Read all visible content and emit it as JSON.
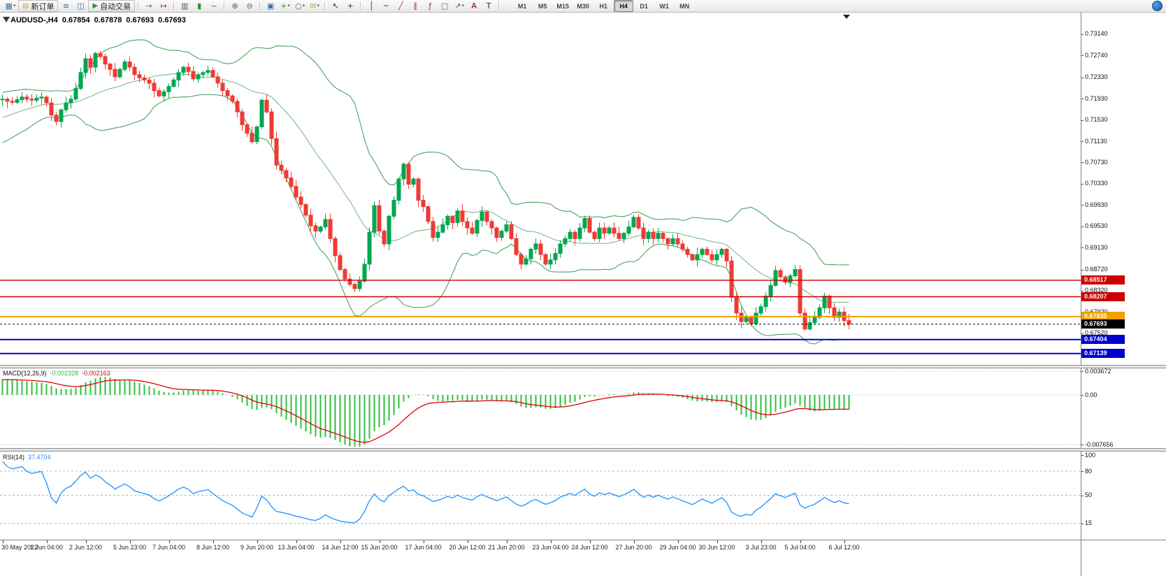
{
  "toolbar": {
    "dropdown_glyph": "▾",
    "active_timeframe": "H4",
    "timeframes": [
      "M1",
      "M5",
      "M15",
      "M30",
      "H1",
      "H4",
      "D1",
      "W1",
      "MN"
    ],
    "items": [
      {
        "kind": "icon",
        "name": "new-chart-icon",
        "glyph": "▦",
        "fg": "#3A6FB5",
        "dropdown": true
      },
      {
        "kind": "button",
        "name": "new-order-button",
        "glyph": "▤",
        "fg": "#D9A43B",
        "label": "新订单"
      },
      {
        "kind": "icon",
        "name": "market-watch-icon",
        "glyph": "≡",
        "fg": "#3A6FB5"
      },
      {
        "kind": "icon",
        "name": "navigator-icon",
        "glyph": "◫",
        "fg": "#3A6FB5"
      },
      {
        "kind": "button",
        "name": "autotrading-button",
        "glyph": "▶",
        "fg": "#1FA01F",
        "label": "自动交易"
      },
      {
        "kind": "sep"
      },
      {
        "kind": "icon",
        "name": "auto-scroll-icon",
        "glyph": "→",
        "fg": "#2F8F2F"
      },
      {
        "kind": "icon",
        "name": "chart-shift-icon",
        "glyph": "↦",
        "fg": "#B03030"
      },
      {
        "kind": "sep"
      },
      {
        "kind": "icon",
        "name": "bar-chart-icon",
        "glyph": "▥",
        "fg": "#555555"
      },
      {
        "kind": "icon",
        "name": "candlestick-chart-icon",
        "glyph": "▮",
        "fg": "#2F8F2F"
      },
      {
        "kind": "icon",
        "name": "line-chart-icon",
        "glyph": "~",
        "fg": "#B03030"
      },
      {
        "kind": "sep"
      },
      {
        "kind": "icon",
        "name": "zoom-in-icon",
        "glyph": "⊕",
        "fg": "#44628C"
      },
      {
        "kind": "icon",
        "name": "zoom-out-icon",
        "glyph": "⊖",
        "fg": "#44628C"
      },
      {
        "kind": "sep"
      },
      {
        "kind": "icon",
        "name": "tile-windows-icon",
        "glyph": "▣",
        "fg": "#3A6FB5"
      },
      {
        "kind": "icon",
        "name": "indicators-icon",
        "glyph": "+",
        "fg": "#1FA01F",
        "dropdown": true
      },
      {
        "kind": "icon",
        "name": "periods-icon",
        "glyph": "○",
        "fg": "#44628C",
        "dropdown": true
      },
      {
        "kind": "icon",
        "name": "templates-icon",
        "glyph": "✉",
        "fg": "#C2A23C",
        "dropdown": true
      },
      {
        "kind": "sep"
      },
      {
        "kind": "icon",
        "name": "cursor-icon",
        "glyph": "↖",
        "fg": "#333333"
      },
      {
        "kind": "icon",
        "name": "crosshair-icon",
        "glyph": "+",
        "fg": "#333333"
      },
      {
        "kind": "sep"
      },
      {
        "kind": "icon",
        "name": "vertical-line-icon",
        "glyph": "│",
        "fg": "#333333"
      },
      {
        "kind": "icon",
        "name": "horizontal-line-icon",
        "glyph": "─",
        "fg": "#333333"
      },
      {
        "kind": "icon",
        "name": "trendline-icon",
        "glyph": "╱",
        "fg": "#B03030"
      },
      {
        "kind": "icon",
        "name": "channel-icon",
        "glyph": "∥",
        "fg": "#B03030"
      },
      {
        "kind": "icon",
        "name": "fibonacci-icon",
        "glyph": "ƒ",
        "fg": "#B03030"
      },
      {
        "kind": "icon",
        "name": "shapes-icon",
        "glyph": "□",
        "fg": "#3A6FB5"
      },
      {
        "kind": "icon",
        "name": "arrows-icon",
        "glyph": "↗",
        "fg": "#B03030",
        "dropdown": true
      },
      {
        "kind": "icon",
        "name": "text-icon",
        "glyph": "A",
        "fg": "#8B0000"
      },
      {
        "kind": "icon",
        "name": "text-label-icon",
        "glyph": "T",
        "fg": "#333333"
      },
      {
        "kind": "sep"
      }
    ]
  },
  "chart": {
    "symbol_period": "AUDUSD-,H4",
    "open": "0.67854",
    "high": "0.67878",
    "low": "0.67693",
    "close": "0.67693",
    "price_axis": [
      "0.73140",
      "0.72740",
      "0.72330",
      "0.71930",
      "0.71530",
      "0.71130",
      "0.70730",
      "0.70330",
      "0.69930",
      "0.69530",
      "0.69130",
      "0.68720",
      "0.68320",
      "0.67920",
      "0.67520"
    ],
    "lines": [
      {
        "name": "resistance-line-1",
        "price": "0.68517",
        "color": "#CC0000",
        "style": "solid",
        "width": 1.4
      },
      {
        "name": "resistance-line-2",
        "price": "0.68207",
        "color": "#CC0000",
        "style": "solid",
        "width": 1.4
      },
      {
        "name": "golden-line",
        "price": "0.67835",
        "color": "#F0A000",
        "style": "solid",
        "width": 2
      },
      {
        "name": "bid-price-line",
        "price": "0.67693",
        "color": "#000000",
        "style": "dotted",
        "width": 1
      },
      {
        "name": "support-line-1",
        "price": "0.67404",
        "color": "#0000CC",
        "style": "solid",
        "width": 2
      },
      {
        "name": "support-line-2",
        "price": "0.67139",
        "color": "#0000CC",
        "style": "solid",
        "width": 2
      }
    ],
    "colors": {
      "up": "#00A651",
      "down": "#EF3A34",
      "bollinger": "#4BA35E",
      "background": "#FFFFFF",
      "axis_text": "#111111"
    }
  },
  "macd": {
    "label": "MACD(12,26,9)",
    "value_main": "-0.002328",
    "value_signal": "-0.002163",
    "axis": [
      "0.003672",
      "0.00",
      "-0.007656"
    ],
    "histogram_color": "#2FBF3F",
    "signal_color": "#E00000"
  },
  "rsi": {
    "label": "RSI(14)",
    "value": "37.4704",
    "axis": [
      "100",
      "80",
      "50",
      "15"
    ],
    "levels": [
      80,
      50,
      15
    ],
    "line_color": "#1E90FF"
  },
  "chart_data": {
    "type": "candlestick",
    "symbol": "AUDUSD-",
    "timeframe": "H4",
    "last_ohlc": {
      "open": 0.67854,
      "high": 0.67878,
      "low": 0.67693,
      "close": 0.67693
    },
    "price_range": [
      0.6694,
      0.7352
    ],
    "horizontal_levels": [
      0.68517,
      0.68207,
      0.67835,
      0.67404,
      0.67139
    ],
    "closes": [
      0.7192,
      0.7188,
      0.7186,
      0.7191,
      0.7196,
      0.7192,
      0.719,
      0.7194,
      0.7196,
      0.7185,
      0.7162,
      0.715,
      0.7172,
      0.7185,
      0.7192,
      0.7212,
      0.7242,
      0.7268,
      0.7252,
      0.7278,
      0.7272,
      0.7258,
      0.7248,
      0.7234,
      0.7248,
      0.7262,
      0.7252,
      0.7238,
      0.7232,
      0.7228,
      0.7222,
      0.7208,
      0.7198,
      0.7206,
      0.7216,
      0.7228,
      0.7242,
      0.7252,
      0.7244,
      0.723,
      0.7238,
      0.7242,
      0.7246,
      0.7234,
      0.7222,
      0.7208,
      0.7198,
      0.7188,
      0.7168,
      0.7144,
      0.7128,
      0.7112,
      0.714,
      0.719,
      0.7168,
      0.7118,
      0.7068,
      0.7058,
      0.7044,
      0.7028,
      0.7008,
      0.6994,
      0.6974,
      0.6954,
      0.6944,
      0.6952,
      0.6966,
      0.693,
      0.6898,
      0.6872,
      0.6854,
      0.6844,
      0.6836,
      0.685,
      0.6882,
      0.6942,
      0.6992,
      0.6944,
      0.692,
      0.6972,
      0.7002,
      0.7042,
      0.707,
      0.7032,
      0.7042,
      0.7002,
      0.699,
      0.6962,
      0.6932,
      0.6942,
      0.6956,
      0.6972,
      0.696,
      0.6982,
      0.6962,
      0.695,
      0.694,
      0.6964,
      0.698,
      0.6962,
      0.695,
      0.6932,
      0.6944,
      0.6956,
      0.693,
      0.69,
      0.6882,
      0.6892,
      0.691,
      0.692,
      0.69,
      0.6882,
      0.689,
      0.6902,
      0.692,
      0.693,
      0.6942,
      0.693,
      0.695,
      0.6968,
      0.6942,
      0.693,
      0.695,
      0.694,
      0.695,
      0.694,
      0.693,
      0.694,
      0.6952,
      0.697,
      0.695,
      0.693,
      0.6942,
      0.693,
      0.694,
      0.693,
      0.692,
      0.693,
      0.692,
      0.691,
      0.69,
      0.689,
      0.69,
      0.691,
      0.69,
      0.689,
      0.69,
      0.691,
      0.6888,
      0.682,
      0.679,
      0.6774,
      0.6782,
      0.677,
      0.679,
      0.6802,
      0.6822,
      0.6842,
      0.687,
      0.6858,
      0.6848,
      0.686,
      0.6872,
      0.679,
      0.676,
      0.6772,
      0.6782,
      0.68,
      0.6822,
      0.68,
      0.6782,
      0.6792,
      0.6776,
      0.67693
    ],
    "x_labels": [
      "30 May 2022",
      "1 Jun 04:00",
      "2 Jun 12:00",
      "5 Jun 23:00",
      "7 Jun 04:00",
      "8 Jun 12:00",
      "9 Jun 20:00",
      "13 Jun 04:00",
      "14 Jun 12:00",
      "15 Jun 20:00",
      "17 Jun 04:00",
      "20 Jun 12:00",
      "21 Jun 20:00",
      "23 Jun 04:00",
      "24 Jun 12:00",
      "27 Jun 20:00",
      "29 Jun 04:00",
      "30 Jun 12:00",
      "3 Jul 23:00",
      "5 Jul 04:00",
      "6 Jul 12:00"
    ],
    "indicators": {
      "bollinger_bands": {
        "period": 20,
        "deviation": 2
      },
      "macd": {
        "fast": 12,
        "slow": 26,
        "signal": 9,
        "current_macd": -0.002328,
        "current_signal": -0.002163,
        "scale_max": 0.003672,
        "scale_min": -0.007656
      },
      "rsi": {
        "period": 14,
        "current": 37.4704,
        "levels": [
          80,
          50,
          15
        ]
      }
    }
  }
}
